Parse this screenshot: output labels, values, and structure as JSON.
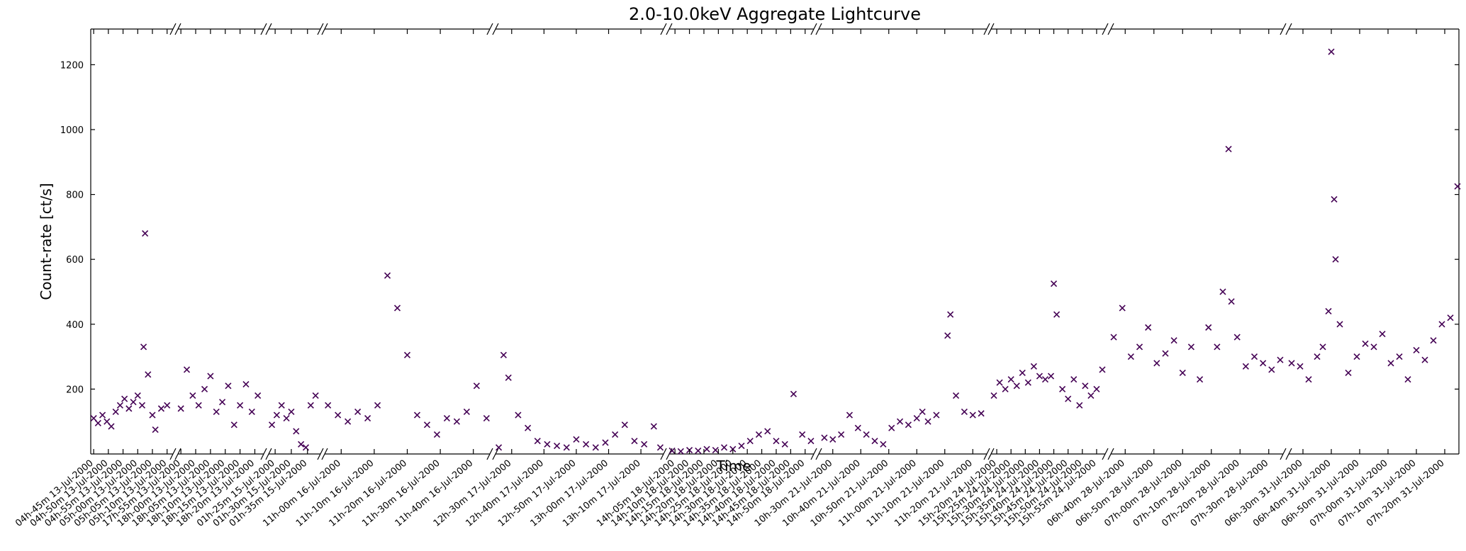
{
  "chart_data": {
    "type": "scatter",
    "title": "2.0-10.0keV Aggregate Lightcurve",
    "xlabel": "Time",
    "ylabel": "Count-rate [ct/s]",
    "color": "#440154",
    "ylim": [
      0,
      1310
    ],
    "yticks": [
      200,
      400,
      600,
      800,
      1000,
      1200
    ],
    "panels": [
      {
        "xlim": [
          284,
          312
        ],
        "xticks": [
          {
            "value": 285,
            "label": "04h-45m 13-Jul-2000"
          },
          {
            "value": 290,
            "label": "04h-50m 13-Jul-2000"
          },
          {
            "value": 295,
            "label": "04h-55m 13-Jul-2000"
          },
          {
            "value": 300,
            "label": "05h-00m 13-Jul-2000"
          },
          {
            "value": 305,
            "label": "05h-05m 13-Jul-2000"
          },
          {
            "value": 310,
            "label": "05h-10m 13-Jul-2000"
          }
        ],
        "x": [
          285,
          286.5,
          288,
          289.5,
          291,
          292.5,
          294,
          295.5,
          297,
          298.5,
          300,
          301.5,
          302,
          302.5,
          303.5,
          305,
          306,
          308,
          310
        ],
        "values": [
          110,
          95,
          120,
          100,
          85,
          130,
          150,
          170,
          140,
          160,
          180,
          150,
          330,
          680,
          245,
          120,
          75,
          140,
          150
        ]
      },
      {
        "xlim": [
          1074,
          1103
        ],
        "xticks": [
          {
            "value": 1075,
            "label": "17h-55m 13-Jul-2000"
          },
          {
            "value": 1080,
            "label": "18h-00m 13-Jul-2000"
          },
          {
            "value": 1085,
            "label": "18h-05m 13-Jul-2000"
          },
          {
            "value": 1090,
            "label": "18h-10m 13-Jul-2000"
          },
          {
            "value": 1095,
            "label": "18h-15m 13-Jul-2000"
          },
          {
            "value": 1100,
            "label": "18h-20m 13-Jul-2000"
          }
        ],
        "x": [
          1075,
          1077,
          1079,
          1081,
          1083,
          1085,
          1087,
          1089,
          1091,
          1093,
          1095,
          1097,
          1099,
          1101
        ],
        "values": [
          140,
          260,
          180,
          150,
          200,
          240,
          130,
          160,
          210,
          90,
          150,
          215,
          130,
          180
        ]
      },
      {
        "xlim": [
          83,
          99
        ],
        "xticks": [
          {
            "value": 85,
            "label": "01h-25m 15-Jul-2000"
          },
          {
            "value": 90,
            "label": "01h-30m 15-Jul-2000"
          },
          {
            "value": 95,
            "label": "01h-35m 15-Jul-2000"
          }
        ],
        "x": [
          84,
          85.5,
          87,
          88.5,
          90,
          91.5,
          93,
          94.5,
          96,
          97.5
        ],
        "values": [
          90,
          120,
          150,
          110,
          130,
          70,
          30,
          20,
          150,
          180
        ]
      },
      {
        "xlim": [
          655,
          705
        ],
        "xticks": [
          {
            "value": 660,
            "label": "11h-00m 16-Jul-2000"
          },
          {
            "value": 670,
            "label": "11h-10m 16-Jul-2000"
          },
          {
            "value": 680,
            "label": "11h-20m 16-Jul-2000"
          },
          {
            "value": 690,
            "label": "11h-30m 16-Jul-2000"
          },
          {
            "value": 700,
            "label": "11h-40m 16-Jul-2000"
          }
        ],
        "x": [
          656,
          659,
          662,
          665,
          668,
          671,
          674,
          677,
          680,
          683,
          686,
          689,
          692,
          695,
          698,
          701,
          704
        ],
        "values": [
          150,
          120,
          100,
          130,
          110,
          150,
          550,
          450,
          305,
          120,
          90,
          60,
          110,
          100,
          130,
          210,
          110
        ]
      },
      {
        "xlim": [
          745,
          797
        ],
        "xticks": [
          {
            "value": 750,
            "label": "12h-30m 17-Jul-2000"
          },
          {
            "value": 760,
            "label": "12h-40m 17-Jul-2000"
          },
          {
            "value": 770,
            "label": "12h-50m 17-Jul-2000"
          },
          {
            "value": 780,
            "label": "13h-00m 17-Jul-2000"
          },
          {
            "value": 790,
            "label": "13h-10m 17-Jul-2000"
          }
        ],
        "x": [
          746,
          747.5,
          749,
          752,
          755,
          758,
          761,
          764,
          767,
          770,
          773,
          776,
          779,
          782,
          785,
          788,
          791,
          794,
          796
        ],
        "values": [
          20,
          305,
          235,
          120,
          80,
          40,
          30,
          25,
          20,
          45,
          30,
          20,
          35,
          60,
          90,
          40,
          30,
          85,
          20
        ]
      },
      {
        "xlim": [
          843,
          893
        ],
        "xticks": [
          {
            "value": 845,
            "label": "14h-05m 18-Jul-2000"
          },
          {
            "value": 850,
            "label": "14h-10m 18-Jul-2000"
          },
          {
            "value": 855,
            "label": "14h-15m 18-Jul-2000"
          },
          {
            "value": 860,
            "label": "14h-20m 18-Jul-2000"
          },
          {
            "value": 865,
            "label": "14h-25m 18-Jul-2000"
          },
          {
            "value": 870,
            "label": "14h-30m 18-Jul-2000"
          },
          {
            "value": 875,
            "label": "14h-35m 18-Jul-2000"
          },
          {
            "value": 880,
            "label": "14h-40m 18-Jul-2000"
          },
          {
            "value": 885,
            "label": "14h-45m 18-Jul-2000"
          },
          {
            "value": 890,
            "label": "14h-50m 18-Jul-2000"
          }
        ],
        "x": [
          844,
          847,
          850,
          853,
          856,
          859,
          862,
          865,
          868,
          871,
          874,
          877,
          880,
          883,
          886,
          889,
          892
        ],
        "values": [
          10,
          8,
          12,
          10,
          15,
          12,
          20,
          15,
          25,
          40,
          60,
          70,
          40,
          30,
          185,
          60,
          40
        ]
      },
      {
        "xlim": [
          625,
          685
        ],
        "xticks": [
          {
            "value": 630,
            "label": "10h-30m 21-Jul-2000"
          },
          {
            "value": 640,
            "label": "10h-40m 21-Jul-2000"
          },
          {
            "value": 650,
            "label": "10h-50m 21-Jul-2000"
          },
          {
            "value": 660,
            "label": "11h-00m 21-Jul-2000"
          },
          {
            "value": 670,
            "label": "11h-10m 21-Jul-2000"
          },
          {
            "value": 680,
            "label": "11h-20m 21-Jul-2000"
          }
        ],
        "x": [
          627,
          630,
          633,
          636,
          639,
          642,
          645,
          648,
          651,
          654,
          657,
          660,
          662,
          664,
          667,
          671,
          672,
          674,
          677,
          680,
          683
        ],
        "values": [
          50,
          45,
          60,
          120,
          80,
          60,
          40,
          30,
          80,
          100,
          90,
          110,
          130,
          100,
          120,
          365,
          430,
          180,
          130,
          120,
          125
        ]
      },
      {
        "xlim": [
          918,
          958
        ],
        "xticks": [
          {
            "value": 920,
            "label": "15h-20m 24-Jul-2000"
          },
          {
            "value": 925,
            "label": "15h-25m 24-Jul-2000"
          },
          {
            "value": 930,
            "label": "15h-30m 24-Jul-2000"
          },
          {
            "value": 935,
            "label": "15h-35m 24-Jul-2000"
          },
          {
            "value": 940,
            "label": "15h-40m 24-Jul-2000"
          },
          {
            "value": 945,
            "label": "15h-45m 24-Jul-2000"
          },
          {
            "value": 950,
            "label": "15h-50m 24-Jul-2000"
          },
          {
            "value": 955,
            "label": "15h-55m 24-Jul-2000"
          }
        ],
        "x": [
          919,
          921,
          923,
          925,
          927,
          929,
          931,
          933,
          935,
          937,
          939,
          940,
          941,
          943,
          945,
          947,
          949,
          951,
          953,
          955,
          957
        ],
        "values": [
          180,
          220,
          200,
          230,
          210,
          250,
          220,
          270,
          240,
          230,
          240,
          525,
          430,
          200,
          170,
          230,
          150,
          210,
          180,
          200,
          260
        ]
      },
      {
        "xlim": [
          395,
          455
        ],
        "xticks": [
          {
            "value": 400,
            "label": "06h-40m 28-Jul-2000"
          },
          {
            "value": 410,
            "label": "06h-50m 28-Jul-2000"
          },
          {
            "value": 420,
            "label": "07h-00m 28-Jul-2000"
          },
          {
            "value": 430,
            "label": "07h-10m 28-Jul-2000"
          },
          {
            "value": 440,
            "label": "07h-20m 28-Jul-2000"
          },
          {
            "value": 450,
            "label": "07h-30m 28-Jul-2000"
          }
        ],
        "x": [
          396,
          399,
          402,
          405,
          408,
          411,
          414,
          417,
          420,
          423,
          426,
          429,
          432,
          434,
          436,
          437,
          439,
          442,
          445,
          448,
          451,
          454
        ],
        "values": [
          360,
          450,
          300,
          330,
          390,
          280,
          310,
          350,
          250,
          330,
          230,
          390,
          330,
          500,
          940,
          470,
          360,
          270,
          300,
          280,
          260,
          290
        ]
      },
      {
        "xlim": [
          385,
          445
        ],
        "xticks": [
          {
            "value": 390,
            "label": "06h-30m 31-Jul-2000"
          },
          {
            "value": 400,
            "label": "06h-40m 31-Jul-2000"
          },
          {
            "value": 410,
            "label": "06h-50m 31-Jul-2000"
          },
          {
            "value": 420,
            "label": "07h-00m 31-Jul-2000"
          },
          {
            "value": 430,
            "label": "07h-10m 31-Jul-2000"
          },
          {
            "value": 440,
            "label": "07h-20m 31-Jul-2000"
          }
        ],
        "x": [
          386,
          389,
          392,
          395,
          397,
          399,
          400,
          401,
          401.5,
          403,
          406,
          409,
          412,
          415,
          418,
          421,
          424,
          427,
          430,
          433,
          436,
          439,
          442,
          444.5
        ],
        "values": [
          280,
          270,
          230,
          300,
          330,
          440,
          1240,
          785,
          600,
          400,
          250,
          300,
          340,
          330,
          370,
          280,
          300,
          230,
          320,
          290,
          350,
          400,
          420,
          825
        ]
      }
    ]
  }
}
